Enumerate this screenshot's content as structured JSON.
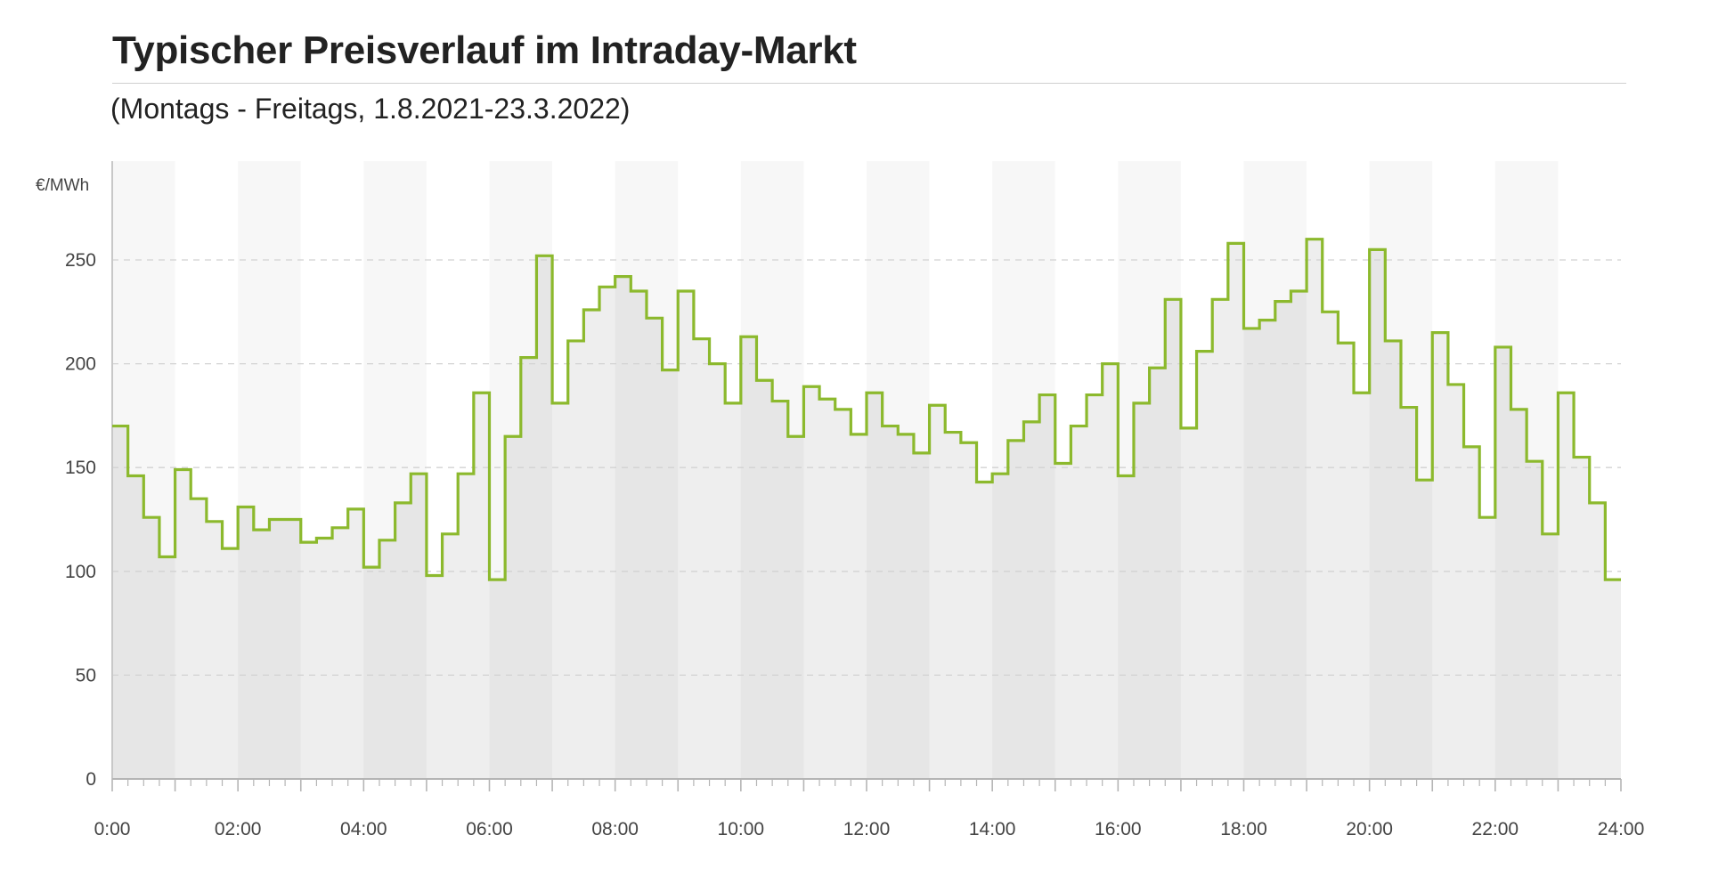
{
  "chart_data": {
    "type": "line",
    "step": true,
    "title": "Typischer Preisverlauf im Intraday-Markt",
    "subtitle": "(Montags - Freitags, 1.8.2021-23.3.2022)",
    "ylabel": "€/MWh",
    "xlabel": "",
    "ylim": [
      0,
      270
    ],
    "xlim": [
      0,
      24
    ],
    "yticks": [
      0,
      50,
      100,
      150,
      200,
      250
    ],
    "xticks": [
      "0:00",
      "02:00",
      "04:00",
      "06:00",
      "08:00",
      "10:00",
      "12:00",
      "14:00",
      "16:00",
      "18:00",
      "20:00",
      "22:00",
      "24:00"
    ],
    "grid": true,
    "line_color": "#8cb92d",
    "interval_hours": 0.25,
    "values": [
      170,
      146,
      126,
      107,
      149,
      135,
      124,
      111,
      131,
      120,
      125,
      125,
      114,
      116,
      121,
      130,
      102,
      115,
      133,
      147,
      98,
      118,
      147,
      186,
      96,
      165,
      203,
      252,
      181,
      211,
      226,
      237,
      242,
      235,
      222,
      197,
      235,
      212,
      200,
      181,
      213,
      192,
      182,
      165,
      189,
      183,
      178,
      166,
      186,
      170,
      166,
      157,
      180,
      167,
      162,
      143,
      147,
      163,
      172,
      185,
      152,
      170,
      185,
      200,
      146,
      181,
      198,
      231,
      169,
      206,
      231,
      258,
      217,
      221,
      230,
      235,
      260,
      225,
      210,
      186,
      255,
      211,
      179,
      144,
      215,
      190,
      160,
      126,
      208,
      178,
      153,
      118,
      186,
      155,
      133,
      96
    ]
  }
}
